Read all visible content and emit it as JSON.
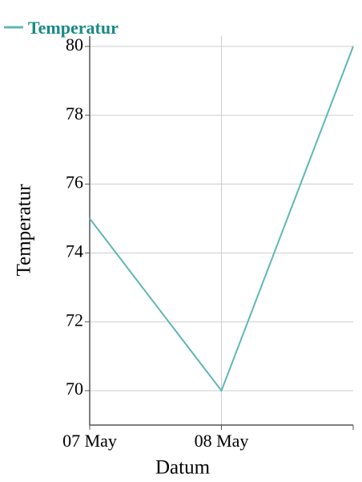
{
  "chart_data": {
    "type": "line",
    "title": "",
    "xlabel": "Datum",
    "ylabel": "Temperatur",
    "x": [
      "2025-05-07",
      "2025-05-08",
      "2025-05-09"
    ],
    "x_ticks": [
      "07 May",
      "08 May"
    ],
    "x_range": [
      "2025-05-07",
      "2025-05-09"
    ],
    "ylim": [
      69,
      80.3
    ],
    "y_ticks": [
      70,
      72,
      74,
      76,
      78,
      80
    ],
    "grid": true,
    "legend": "top-left",
    "series": [
      {
        "name": "Temperatur",
        "values": [
          75,
          70,
          80
        ]
      }
    ],
    "colors": {
      "series": "#5fb7b5",
      "legend_text": "#1a8a86",
      "grid": "#cccccc",
      "axis": "#555555"
    }
  }
}
